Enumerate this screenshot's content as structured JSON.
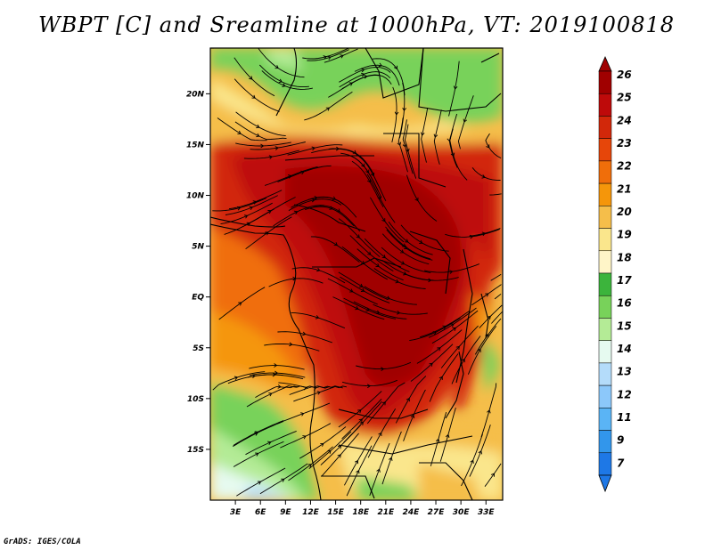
{
  "title": "WBPT [C] and Sreamline at 1000hPa, VT: 2019100818",
  "footer": "GrADS: IGES/COLA",
  "map": {
    "lon_range": [
      0,
      35
    ],
    "lat_range": [
      -20,
      24.5
    ],
    "lon_ticks": [
      "3E",
      "6E",
      "9E",
      "12E",
      "15E",
      "18E",
      "21E",
      "24E",
      "27E",
      "30E",
      "33E"
    ],
    "lon_tick_values": [
      3,
      6,
      9,
      12,
      15,
      18,
      21,
      24,
      27,
      30,
      33
    ],
    "lat_ticks": [
      "20N",
      "15N",
      "10N",
      "5N",
      "EQ",
      "5S",
      "10S",
      "15S"
    ],
    "lat_tick_values": [
      20,
      15,
      10,
      5,
      0,
      -5,
      -10,
      -15
    ]
  },
  "colorbar": {
    "labels": [
      "26",
      "25",
      "24",
      "23",
      "22",
      "21",
      "20",
      "19",
      "18",
      "17",
      "16",
      "15",
      "14",
      "13",
      "12",
      "11",
      "9",
      "7"
    ],
    "colors": [
      "#a00000",
      "#be0a0a",
      "#d2280a",
      "#e6460a",
      "#f06e0a",
      "#f5960a",
      "#f5be4a",
      "#fae68c",
      "#fff5c8",
      "#3cb43c",
      "#78d25a",
      "#b4eb96",
      "#e6faf0",
      "#b4dcfa",
      "#8cc8fa",
      "#5ab4f5",
      "#3296eb",
      "#1e78e6"
    ]
  }
}
